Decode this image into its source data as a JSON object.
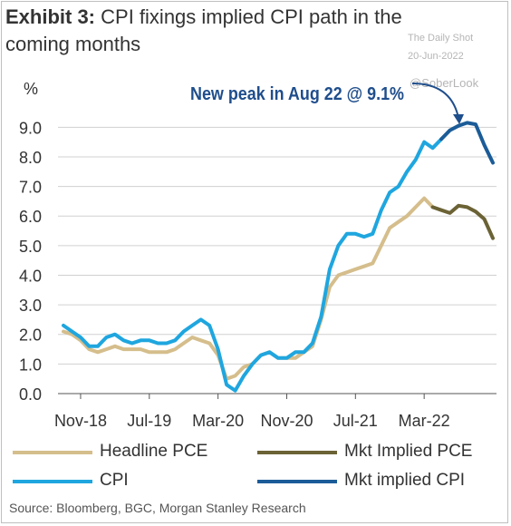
{
  "header": {
    "exhibit": "Exhibit 3:",
    "title": "CPI fixings implied CPI path in the coming months"
  },
  "watermark": {
    "line1": "The Daily Shot",
    "line2": "20-Jun-2022",
    "line3": "@SoberLook"
  },
  "colors": {
    "headline_pce": "#d5be8c",
    "mkt_pce": "#6b6235",
    "cpi": "#1fa6df",
    "mkt_cpi": "#1b5c98",
    "annotation": "#1f4e8c",
    "grid": "#d0d0d0"
  },
  "chart_data": {
    "type": "line",
    "ylabel": "%",
    "ylim": [
      0,
      9.5
    ],
    "yticks": [
      "0.0",
      "1.0",
      "2.0",
      "3.0",
      "4.0",
      "5.0",
      "6.0",
      "7.0",
      "8.0",
      "9.0"
    ],
    "xtick_labels": [
      "Nov-18",
      "Jul-19",
      "Mar-20",
      "Nov-20",
      "Jul-21",
      "Mar-22"
    ],
    "grid": "horizontal",
    "legend_position": "bottom",
    "annotation": "New peak in Aug 22 @ 9.1%",
    "series": [
      {
        "name": "Headline PCE",
        "x": [
          "2018-09",
          "2018-10",
          "2018-11",
          "2018-12",
          "2019-01",
          "2019-02",
          "2019-03",
          "2019-04",
          "2019-05",
          "2019-06",
          "2019-07",
          "2019-08",
          "2019-09",
          "2019-10",
          "2019-11",
          "2019-12",
          "2020-01",
          "2020-02",
          "2020-03",
          "2020-04",
          "2020-05",
          "2020-06",
          "2020-07",
          "2020-08",
          "2020-09",
          "2020-10",
          "2020-11",
          "2020-12",
          "2021-01",
          "2021-02",
          "2021-03",
          "2021-04",
          "2021-05",
          "2021-06",
          "2021-07",
          "2021-08",
          "2021-09",
          "2021-10",
          "2021-11",
          "2021-12",
          "2022-01",
          "2022-02",
          "2022-03",
          "2022-04"
        ],
        "values": [
          2.1,
          2.0,
          1.8,
          1.5,
          1.4,
          1.5,
          1.6,
          1.5,
          1.5,
          1.5,
          1.4,
          1.4,
          1.4,
          1.5,
          1.7,
          1.9,
          1.8,
          1.7,
          1.3,
          0.5,
          0.6,
          0.9,
          1.0,
          1.3,
          1.4,
          1.2,
          1.2,
          1.2,
          1.4,
          1.6,
          2.5,
          3.6,
          4.0,
          4.1,
          4.2,
          4.3,
          4.4,
          5.0,
          5.6,
          5.8,
          6.0,
          6.3,
          6.6,
          6.3
        ]
      },
      {
        "name": "CPI",
        "x": [
          "2018-09",
          "2018-10",
          "2018-11",
          "2018-12",
          "2019-01",
          "2019-02",
          "2019-03",
          "2019-04",
          "2019-05",
          "2019-06",
          "2019-07",
          "2019-08",
          "2019-09",
          "2019-10",
          "2019-11",
          "2019-12",
          "2020-01",
          "2020-02",
          "2020-03",
          "2020-04",
          "2020-05",
          "2020-06",
          "2020-07",
          "2020-08",
          "2020-09",
          "2020-10",
          "2020-11",
          "2020-12",
          "2021-01",
          "2021-02",
          "2021-03",
          "2021-04",
          "2021-05",
          "2021-06",
          "2021-07",
          "2021-08",
          "2021-09",
          "2021-10",
          "2021-11",
          "2021-12",
          "2022-01",
          "2022-02",
          "2022-03",
          "2022-04",
          "2022-05"
        ],
        "values": [
          2.3,
          2.1,
          1.9,
          1.6,
          1.6,
          1.9,
          2.0,
          1.8,
          1.7,
          1.8,
          1.8,
          1.7,
          1.7,
          1.8,
          2.1,
          2.3,
          2.5,
          2.3,
          1.5,
          0.3,
          0.1,
          0.6,
          1.0,
          1.3,
          1.4,
          1.2,
          1.2,
          1.4,
          1.4,
          1.7,
          2.6,
          4.2,
          5.0,
          5.4,
          5.4,
          5.3,
          5.4,
          6.2,
          6.8,
          7.0,
          7.5,
          7.9,
          8.5,
          8.3,
          8.6
        ]
      },
      {
        "name": "Mkt Implied PCE",
        "x": [
          "2022-04",
          "2022-05",
          "2022-06",
          "2022-07",
          "2022-08",
          "2022-09",
          "2022-10",
          "2022-11"
        ],
        "values": [
          6.3,
          6.2,
          6.1,
          6.35,
          6.3,
          6.15,
          5.9,
          5.25
        ]
      },
      {
        "name": "Mkt implied CPI",
        "x": [
          "2022-05",
          "2022-06",
          "2022-07",
          "2022-08",
          "2022-09",
          "2022-10",
          "2022-11"
        ],
        "values": [
          8.6,
          8.9,
          9.05,
          9.15,
          9.1,
          8.4,
          7.8
        ]
      }
    ]
  },
  "legend": [
    {
      "label": "Headline PCE",
      "color": "#d5be8c"
    },
    {
      "label": "Mkt Implied PCE",
      "color": "#6b6235"
    },
    {
      "label": "CPI",
      "color": "#1fa6df"
    },
    {
      "label": "Mkt implied CPI",
      "color": "#1b5c98"
    }
  ],
  "source": "Source: Bloomberg, BGC, Morgan Stanley Research"
}
